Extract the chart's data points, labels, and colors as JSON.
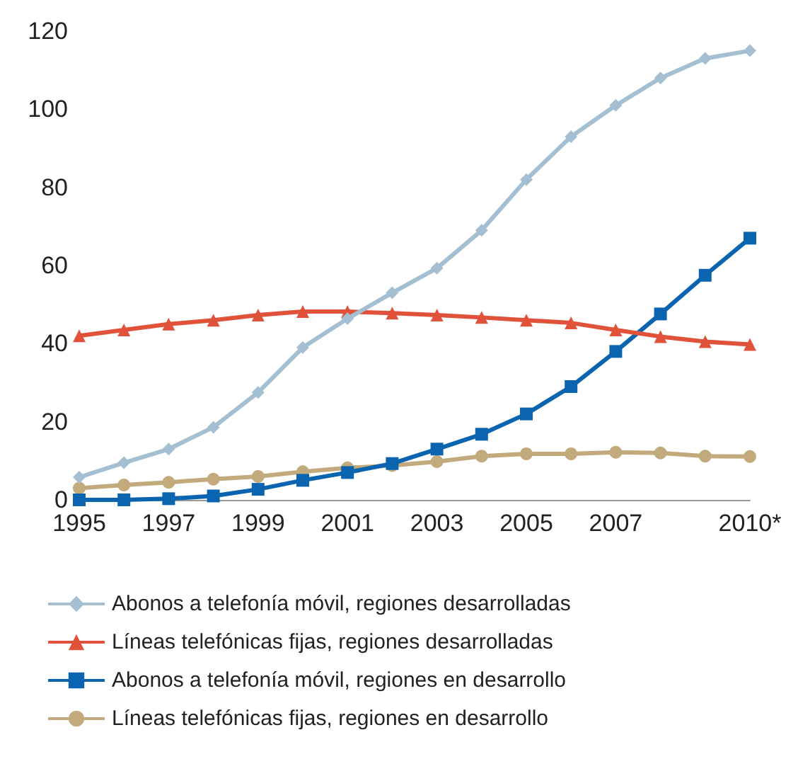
{
  "chart_data": {
    "type": "line",
    "categories": [
      "1995",
      null,
      "1997",
      null,
      "1999",
      null,
      "2001",
      null,
      "2003",
      null,
      "2005",
      null,
      "2007",
      null,
      null,
      "2010*"
    ],
    "ylim": [
      0,
      120
    ],
    "yticks": [
      0,
      20,
      40,
      60,
      80,
      100,
      120
    ],
    "grid": false,
    "legend": "bottom",
    "series": [
      {
        "name": "Abonos a telefonía móvil, regiones desarrolladas",
        "color": "#a3bfd1",
        "marker": "diamond",
        "values": [
          5.8,
          9.5,
          13,
          18.6,
          27.5,
          39,
          46.4,
          53,
          59.3,
          69,
          82,
          93,
          101,
          108,
          113,
          115
        ]
      },
      {
        "name": "Líneas telefónicas fijas, regiones desarrolladas",
        "color": "#e0533a",
        "marker": "triangle",
        "values": [
          42,
          43.5,
          45,
          46,
          47.3,
          48.2,
          48.2,
          47.8,
          47.3,
          46.7,
          46,
          45.3,
          43.5,
          41.8,
          40.5,
          39.8
        ]
      },
      {
        "name": "Abonos a telefonía móvil, regiones en desarrollo",
        "color": "#0a64b0",
        "marker": "square",
        "values": [
          0,
          0,
          0.3,
          1,
          2.7,
          5,
          7,
          9.3,
          13,
          16.8,
          22,
          29,
          38,
          47.6,
          57.5,
          67
        ]
      },
      {
        "name": "Líneas telefónicas fijas, regiones en desarrollo",
        "color": "#c2aa7c",
        "marker": "circle",
        "values": [
          3,
          3.8,
          4.5,
          5.3,
          6,
          7.2,
          8.2,
          8.8,
          9.8,
          11.2,
          11.8,
          11.8,
          12.2,
          12,
          11.2,
          11.1
        ]
      }
    ]
  }
}
